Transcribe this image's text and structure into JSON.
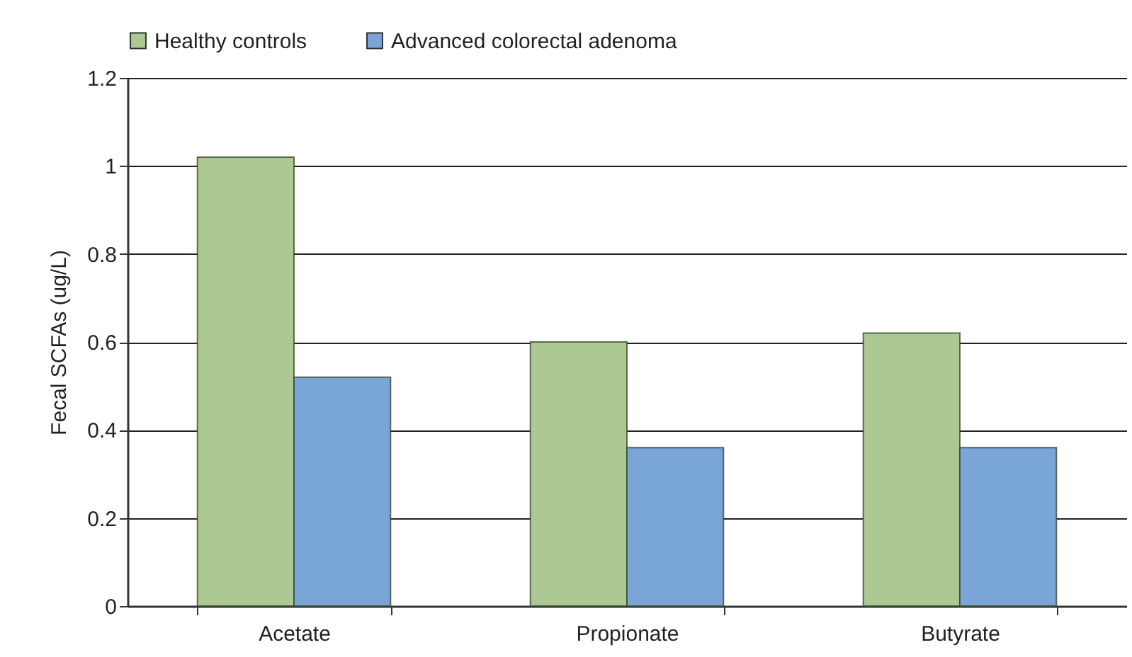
{
  "chart_data": {
    "type": "bar",
    "ylabel": "Fecal SCFAs (ug/L)",
    "categories": [
      "Acetate",
      "Propionate",
      "Butyrate"
    ],
    "series": [
      {
        "name": "Healthy controls",
        "color": "#adc993",
        "values": [
          1.02,
          0.6,
          0.62
        ]
      },
      {
        "name": "Advanced colorectal adenoma",
        "color": "#79a6d6",
        "values": [
          0.52,
          0.36,
          0.36
        ]
      }
    ],
    "ylim": [
      0,
      1.2
    ],
    "yticks": [
      0,
      0.2,
      0.4,
      0.6,
      0.8,
      1,
      1.2
    ],
    "grid": "y",
    "legend": "top"
  }
}
